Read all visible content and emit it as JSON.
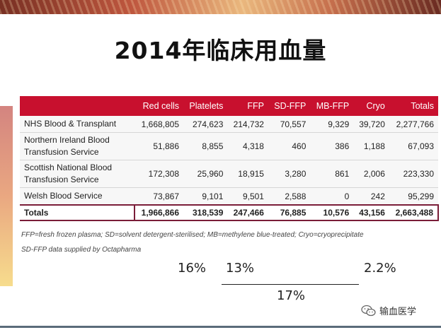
{
  "title": "2014年临床用血量",
  "table": {
    "columns": [
      "",
      "Red cells",
      "Platelets",
      "FFP",
      "SD-FFP",
      "MB-FFP",
      "Cryo",
      "Totals"
    ],
    "rows": [
      {
        "name": "NHS Blood & Transplant",
        "values": [
          "1,668,805",
          "274,623",
          "214,732",
          "70,557",
          "9,329",
          "39,720",
          "2,277,766"
        ]
      },
      {
        "name": "Northern Ireland Blood Transfusion Service",
        "values": [
          "51,886",
          "8,855",
          "4,318",
          "460",
          "386",
          "1,188",
          "67,093"
        ]
      },
      {
        "name": "Scottish National Blood Transfusion Service",
        "values": [
          "172,308",
          "25,960",
          "18,915",
          "3,280",
          "861",
          "2,006",
          "223,330"
        ]
      },
      {
        "name": "Welsh Blood Service",
        "values": [
          "73,867",
          "9,101",
          "9,501",
          "2,588",
          "0",
          "242",
          "95,299"
        ]
      }
    ],
    "totals": {
      "name": "Totals",
      "values": [
        "1,966,866",
        "318,539",
        "247,466",
        "76,885",
        "10,576",
        "43,156",
        "2,663,488"
      ]
    }
  },
  "footnotes": {
    "line1": "FFP=fresh frozen plasma; SD=solvent detergent-sterilised; MB=methylene blue-treated; Cryo=cryoprecipitate",
    "line2": "SD-FFP data supplied by Octapharma"
  },
  "annotations": {
    "platelets_pct": "16%",
    "ffp_pct": "13%",
    "cryo_pct": "2.2%",
    "plasma_total_pct": "17%"
  },
  "watermark": {
    "text": "输血医学",
    "icon": "wechat-icon"
  }
}
